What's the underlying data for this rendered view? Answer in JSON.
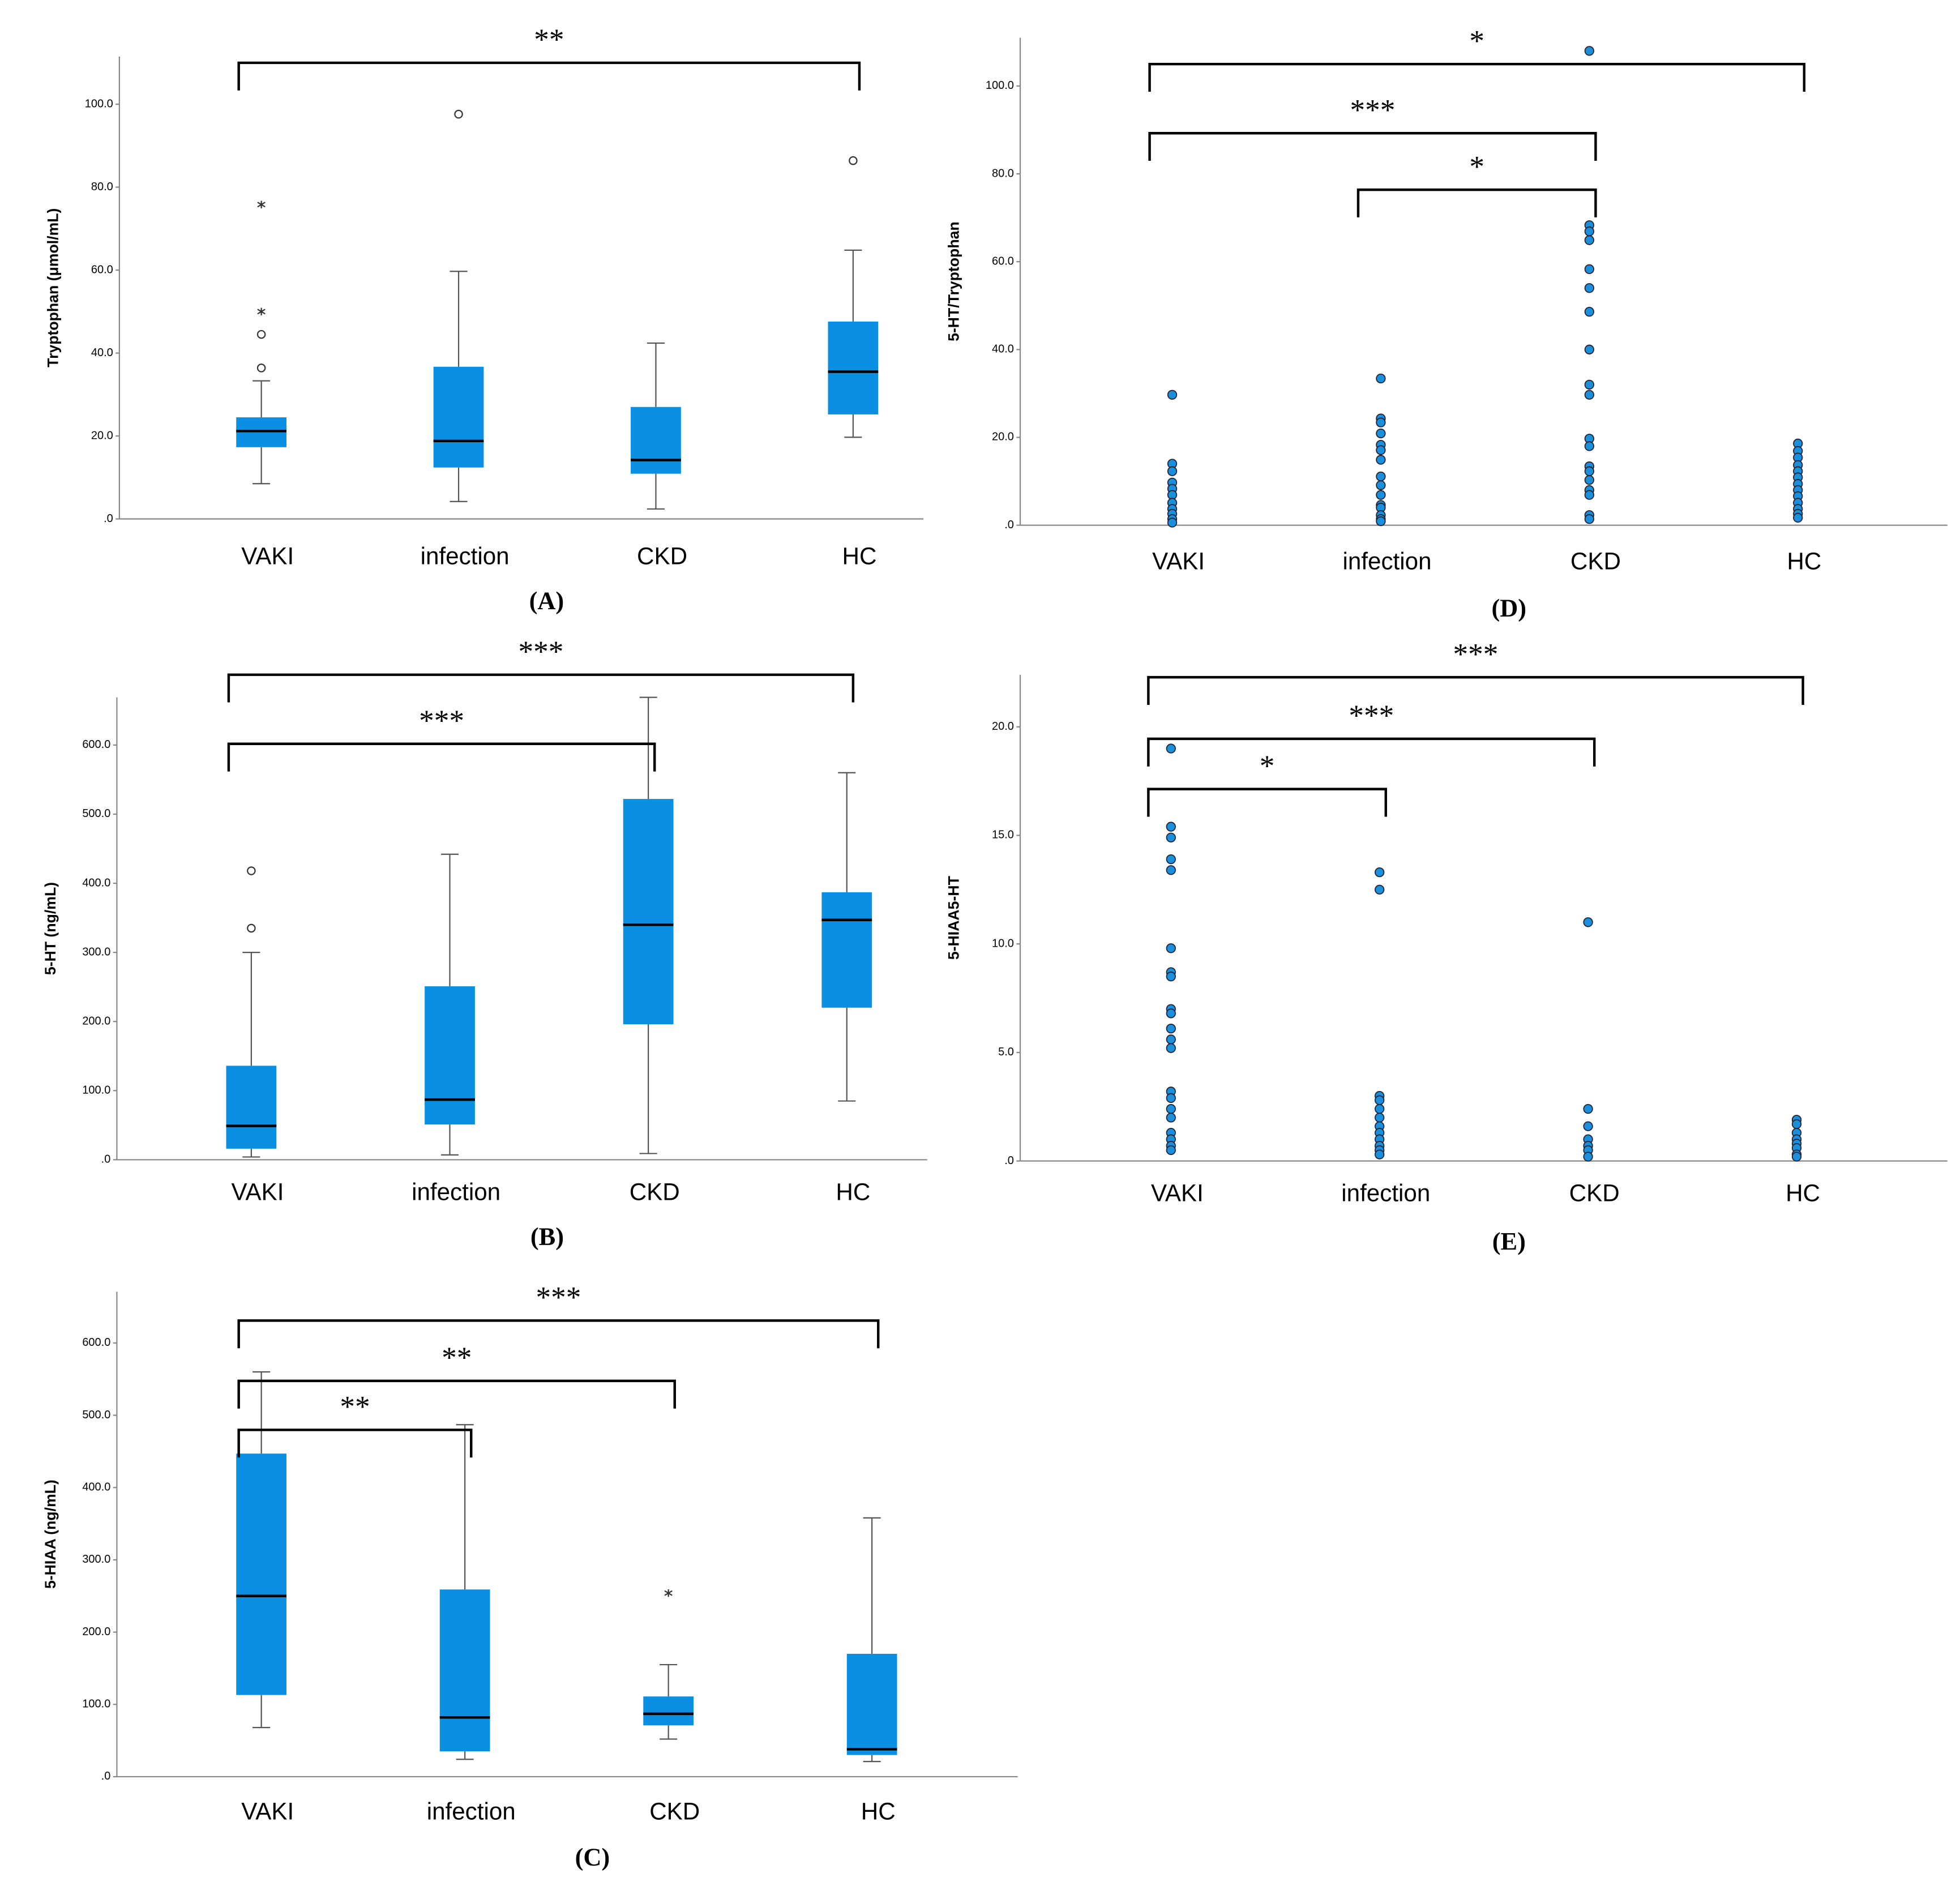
{
  "chart_data": [
    {
      "type": "box",
      "caption": "(A)",
      "ylabel": "Tryptophan (μmol/mL)",
      "color": "#0a8fe3",
      "categories": [
        "VAKI",
        "infection",
        "CKD",
        "HC"
      ],
      "boxes": [
        {
          "min": 8.5,
          "q1": 17.3,
          "median": 21.2,
          "q3": 24.5,
          "max": 33.3,
          "outliers": [
            36.4,
            44.5
          ],
          "extremes": [
            50,
            75.8
          ]
        },
        {
          "min": 4.2,
          "q1": 12.4,
          "median": 18.8,
          "q3": 36.7,
          "max": 59.7,
          "outliers": [
            97.6
          ],
          "extremes": []
        },
        {
          "min": 2.4,
          "q1": 10.9,
          "median": 14.2,
          "q3": 27,
          "max": 42.4,
          "outliers": [],
          "extremes": []
        },
        {
          "min": 19.7,
          "q1": 25.2,
          "median": 35.5,
          "q3": 47.6,
          "max": 64.8,
          "outliers": [
            86.4
          ],
          "extremes": []
        }
      ],
      "ylim": [
        0,
        111.5
      ],
      "yticks": [
        {
          "value": 0,
          "label": ".0"
        },
        {
          "value": 20,
          "label": "20.0"
        },
        {
          "value": 40,
          "label": "40.0"
        },
        {
          "value": 60,
          "label": "60.0"
        },
        {
          "value": 80,
          "label": "80.0"
        },
        {
          "value": 100,
          "label": "100.0"
        }
      ],
      "annotations": [
        {
          "from": 0,
          "to": 3,
          "label": "**"
        }
      ]
    },
    {
      "type": "box",
      "caption": "(B)",
      "ylabel": "5-HT (ng/mL)",
      "color": "#0a8fe3",
      "categories": [
        "VAKI",
        "infection",
        "CKD",
        "HC"
      ],
      "boxes": [
        {
          "min": 4,
          "q1": 16,
          "median": 49,
          "q3": 136,
          "max": 300,
          "outliers": [
            335,
            418
          ],
          "extremes": []
        },
        {
          "min": 7,
          "q1": 51,
          "median": 87,
          "q3": 251,
          "max": 442,
          "outliers": [],
          "extremes": []
        },
        {
          "min": 9,
          "q1": 196,
          "median": 340,
          "q3": 522,
          "max": 669,
          "outliers": [],
          "extremes": []
        },
        {
          "min": 85,
          "q1": 220,
          "median": 347,
          "q3": 387,
          "max": 560,
          "outliers": [],
          "extremes": []
        }
      ],
      "ylim": [
        0,
        669
      ],
      "yticks": [
        {
          "value": 0,
          "label": ".0"
        },
        {
          "value": 100,
          "label": "100.0"
        },
        {
          "value": 200,
          "label": "200.0"
        },
        {
          "value": 300,
          "label": "300.0"
        },
        {
          "value": 400,
          "label": "400.0"
        },
        {
          "value": 500,
          "label": "500.0"
        },
        {
          "value": 600,
          "label": "600.0"
        }
      ],
      "annotations": [
        {
          "from": 0,
          "to": 3,
          "label": "***"
        },
        {
          "from": 0,
          "to": 2,
          "label": "***"
        }
      ]
    },
    {
      "type": "box",
      "caption": "(C)",
      "ylabel": "5-HIAA (ng/mL)",
      "color": "#0a8fe3",
      "categories": [
        "VAKI",
        "infection",
        "CKD",
        "HC"
      ],
      "boxes": [
        {
          "min": 68,
          "q1": 113,
          "median": 250,
          "q3": 447,
          "max": 560,
          "outliers": [],
          "extremes": []
        },
        {
          "min": 24,
          "q1": 35,
          "median": 82,
          "q3": 259,
          "max": 487,
          "outliers": [],
          "extremes": []
        },
        {
          "min": 52,
          "q1": 71,
          "median": 87,
          "q3": 111,
          "max": 155,
          "outliers": [],
          "extremes": [
            254
          ]
        },
        {
          "min": 21,
          "q1": 30,
          "median": 38,
          "q3": 170,
          "max": 358,
          "outliers": [],
          "extremes": []
        }
      ],
      "ylim": [
        0,
        671
      ],
      "yticks": [
        {
          "value": 0,
          "label": ".0"
        },
        {
          "value": 100,
          "label": "100.0"
        },
        {
          "value": 200,
          "label": "200.0"
        },
        {
          "value": 300,
          "label": "300.0"
        },
        {
          "value": 400,
          "label": "400.0"
        },
        {
          "value": 500,
          "label": "500.0"
        },
        {
          "value": 600,
          "label": "600.0"
        }
      ],
      "annotations": [
        {
          "from": 0,
          "to": 3,
          "label": "***"
        },
        {
          "from": 0,
          "to": 2,
          "label": "**"
        },
        {
          "from": 0,
          "to": 1,
          "label": "**"
        }
      ]
    },
    {
      "type": "strip",
      "caption": "(D)",
      "ylabel": "5-HT/Tryptophan",
      "color": "#1a8fdc",
      "categories": [
        "VAKI",
        "infection",
        "CKD",
        "HC"
      ],
      "values": [
        [
          29.7,
          14,
          12.3,
          9.7,
          8.3,
          6.9,
          5.1,
          3.7,
          2.6,
          1.4,
          0.6
        ],
        [
          33.4,
          24.3,
          23.4,
          20.9,
          18.3,
          17.1,
          14.9,
          11.1,
          9.1,
          6.9,
          4.6,
          4,
          2.3,
          1.4,
          0.9
        ],
        [
          108,
          68.3,
          66.9,
          64.9,
          58.3,
          54,
          48.6,
          40,
          32,
          29.7,
          19.7,
          18,
          13.4,
          12.3,
          10.3,
          8,
          6.9,
          2.3,
          1.4
        ],
        [
          18.6,
          16.9,
          15.4,
          13.7,
          12.3,
          10.9,
          9.4,
          8,
          6.6,
          5.1,
          3.7,
          2.6,
          1.7
        ]
      ],
      "ylim": [
        0,
        111
      ],
      "yticks": [
        {
          "value": 0,
          "label": ".0"
        },
        {
          "value": 20,
          "label": "20.0"
        },
        {
          "value": 40,
          "label": "40.0"
        },
        {
          "value": 60,
          "label": "60.0"
        },
        {
          "value": 80,
          "label": "80.0"
        },
        {
          "value": 100,
          "label": "100.0"
        }
      ],
      "annotations": [
        {
          "from": 0,
          "to": 3,
          "label": "*"
        },
        {
          "from": 0,
          "to": 2,
          "label": "***"
        },
        {
          "from": 1,
          "to": 2,
          "label": "*"
        }
      ]
    },
    {
      "type": "strip",
      "caption": "(E)",
      "ylabel": "5-HIAA5-HT",
      "color": "#1a8fdc",
      "categories": [
        "VAKI",
        "infection",
        "CKD",
        "HC"
      ],
      "values": [
        [
          19,
          15.4,
          14.9,
          13.9,
          13.4,
          9.8,
          8.7,
          8.5,
          7,
          6.8,
          6.1,
          5.6,
          5.2,
          3.2,
          2.9,
          2.4,
          2,
          1.3,
          1,
          0.7,
          0.5
        ],
        [
          13.3,
          12.5,
          3,
          2.8,
          2.4,
          2,
          1.6,
          1.3,
          1,
          0.7,
          0.5,
          0.3
        ],
        [
          11,
          2.4,
          1.6,
          1,
          0.7,
          0.5,
          0.2
        ],
        [
          1.9,
          1.7,
          1.3,
          1,
          0.8,
          0.6,
          0.3,
          0.2
        ]
      ],
      "ylim": [
        0,
        22.4
      ],
      "yticks": [
        {
          "value": 0,
          "label": ".0"
        },
        {
          "value": 5,
          "label": "5.0"
        },
        {
          "value": 10,
          "label": "10.0"
        },
        {
          "value": 15,
          "label": "15.0"
        },
        {
          "value": 20,
          "label": "20.0"
        }
      ],
      "annotations": [
        {
          "from": 0,
          "to": 3,
          "label": "***"
        },
        {
          "from": 0,
          "to": 2,
          "label": "***"
        },
        {
          "from": 0,
          "to": 1,
          "label": "*"
        }
      ]
    }
  ]
}
